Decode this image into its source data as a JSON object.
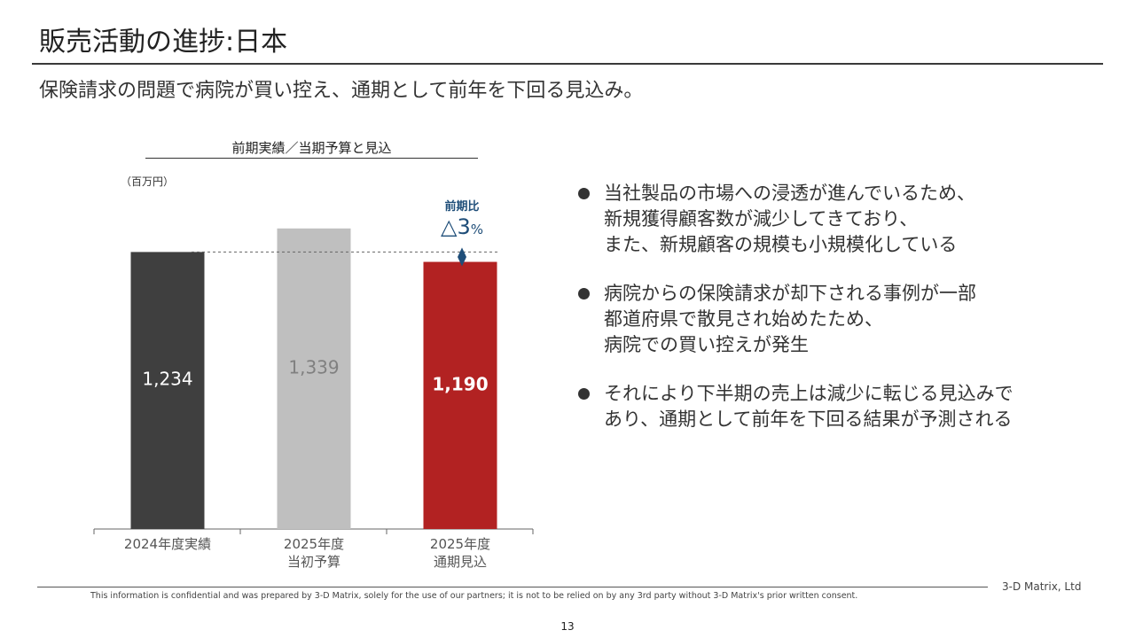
{
  "slide": {
    "title": "販売活動の進捗:日本",
    "subtitle": "保険請求の問題で病院が買い控え、通期として前年を下回る見込み。",
    "company": "3-D Matrix, Ltd",
    "disclaimer": "This information is confidential and was prepared by 3-D Matrix, solely for the use of our partners; it is not to be relied on by any 3rd party without 3-D Matrix's prior written consent.",
    "page_number": "13"
  },
  "chart_data": {
    "type": "bar",
    "title": "前期実績／当期予算と見込",
    "unit_label": "（百万円）",
    "categories": [
      {
        "line1": "2024年度実績",
        "line2": ""
      },
      {
        "line1": "2025年度",
        "line2": "当初予算"
      },
      {
        "line1": "2025年度",
        "line2": "通期見込"
      }
    ],
    "values": [
      1234,
      1339,
      1190
    ],
    "value_labels": [
      "1,234",
      "1,339",
      "1,190"
    ],
    "bar_colors": [
      "#3f3f3f",
      "#bfbfbf",
      "#b22222"
    ],
    "label_colors": [
      "#ffffff",
      "#808080",
      "#ffffff"
    ],
    "ylim": [
      0,
      1500
    ],
    "reference_line_value": 1234,
    "annotation": {
      "label": "前期比",
      "value": "△3",
      "suffix": "%",
      "color": "#1f4e79"
    }
  },
  "bullets": [
    [
      "当社製品の市場への浸透が進んでいるため、",
      "新規獲得顧客数が減少してきており、",
      "また、新規顧客の規模も小規模化している"
    ],
    [
      "病院からの保険請求が却下される事例が一部",
      "都道府県で散見され始めたため、",
      "病院での買い控えが発生"
    ],
    [
      "それにより下半期の売上は減少に転じる見込みで",
      "あり、通期として前年を下回る結果が予測される"
    ]
  ]
}
